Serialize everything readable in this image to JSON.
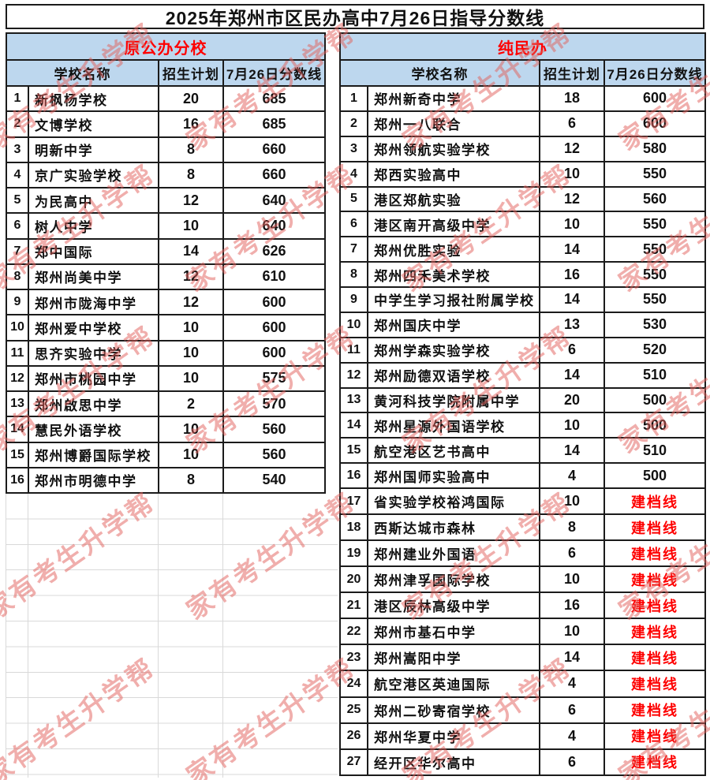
{
  "title": "2025年郑州市区民办高中7月26日指导分数线",
  "watermark_text": "家有考生升学帮",
  "column_headers": {
    "school": "学校名称",
    "plan": "招生计划",
    "score": "7月26日分数线"
  },
  "left_table": {
    "group_label": "原公办分校",
    "rows": [
      {
        "no": "1",
        "school": "新枫杨学校",
        "plan": "20",
        "score": "685",
        "red": false
      },
      {
        "no": "2",
        "school": "文博学校",
        "plan": "16",
        "score": "685",
        "red": false
      },
      {
        "no": "3",
        "school": "明新中学",
        "plan": "8",
        "score": "660",
        "red": false
      },
      {
        "no": "4",
        "school": "京广实验学校",
        "plan": "8",
        "score": "660",
        "red": false
      },
      {
        "no": "5",
        "school": "为民高中",
        "plan": "12",
        "score": "640",
        "red": false
      },
      {
        "no": "6",
        "school": "树人中学",
        "plan": "10",
        "score": "640",
        "red": false
      },
      {
        "no": "7",
        "school": "郑中国际",
        "plan": "14",
        "score": "626",
        "red": false
      },
      {
        "no": "8",
        "school": "郑州尚美中学",
        "plan": "12",
        "score": "610",
        "red": false
      },
      {
        "no": "9",
        "school": "郑州市陇海中学",
        "plan": "12",
        "score": "600",
        "red": false
      },
      {
        "no": "10",
        "school": "郑州爱中学校",
        "plan": "10",
        "score": "600",
        "red": false
      },
      {
        "no": "11",
        "school": "思齐实验中学",
        "plan": "10",
        "score": "600",
        "red": false
      },
      {
        "no": "12",
        "school": "郑州市桃园中学",
        "plan": "10",
        "score": "575",
        "red": false
      },
      {
        "no": "13",
        "school": "郑州啟思中学",
        "plan": "2",
        "score": "570",
        "red": false
      },
      {
        "no": "14",
        "school": "慧民外语学校",
        "plan": "10",
        "score": "560",
        "red": false
      },
      {
        "no": "15",
        "school": "郑州博爵国际学校",
        "plan": "10",
        "score": "560",
        "red": false
      },
      {
        "no": "16",
        "school": "郑州市明德中学",
        "plan": "8",
        "score": "540",
        "red": false
      }
    ]
  },
  "right_table": {
    "group_label": "纯民办",
    "rows": [
      {
        "no": "1",
        "school": "郑州新奇中学",
        "plan": "18",
        "score": "600",
        "red": false
      },
      {
        "no": "2",
        "school": "郑州一八联合",
        "plan": "6",
        "score": "600",
        "red": false
      },
      {
        "no": "3",
        "school": "郑州领航实验学校",
        "plan": "12",
        "score": "580",
        "red": false
      },
      {
        "no": "4",
        "school": "郑西实验高中",
        "plan": "10",
        "score": "550",
        "red": false
      },
      {
        "no": "5",
        "school": "港区郑航实验",
        "plan": "12",
        "score": "560",
        "red": false
      },
      {
        "no": "6",
        "school": "港区南开高级中学",
        "plan": "10",
        "score": "550",
        "red": false
      },
      {
        "no": "7",
        "school": "郑州优胜实验",
        "plan": "14",
        "score": "550",
        "red": false
      },
      {
        "no": "8",
        "school": "郑州四禾美术学校",
        "plan": "16",
        "score": "550",
        "red": false
      },
      {
        "no": "9",
        "school": "中学生学习报社附属学校",
        "plan": "14",
        "score": "550",
        "red": false
      },
      {
        "no": "10",
        "school": "郑州国庆中学",
        "plan": "13",
        "score": "530",
        "red": false
      },
      {
        "no": "11",
        "school": "郑州学森实验学校",
        "plan": "6",
        "score": "520",
        "red": false
      },
      {
        "no": "12",
        "school": "郑州励德双语学校",
        "plan": "14",
        "score": "510",
        "red": false
      },
      {
        "no": "13",
        "school": "黄河科技学院附属中学",
        "plan": "20",
        "score": "500",
        "red": false
      },
      {
        "no": "14",
        "school": "郑州星源外国语学校",
        "plan": "10",
        "score": "500",
        "red": false
      },
      {
        "no": "15",
        "school": "航空港区艺书高中",
        "plan": "14",
        "score": "510",
        "red": false
      },
      {
        "no": "16",
        "school": "郑州国师实验高中",
        "plan": "4",
        "score": "500",
        "red": false
      },
      {
        "no": "17",
        "school": "省实验学校裕鸿国际",
        "plan": "10",
        "score": "建档线",
        "red": true
      },
      {
        "no": "18",
        "school": "西斯达城市森林",
        "plan": "8",
        "score": "建档线",
        "red": true
      },
      {
        "no": "19",
        "school": "郑州建业外国语",
        "plan": "6",
        "score": "建档线",
        "red": true
      },
      {
        "no": "20",
        "school": "郑州津孚国际学校",
        "plan": "10",
        "score": "建档线",
        "red": true
      },
      {
        "no": "21",
        "school": "港区辰林高级中学",
        "plan": "16",
        "score": "建档线",
        "red": true
      },
      {
        "no": "22",
        "school": "郑州市基石中学",
        "plan": "10",
        "score": "建档线",
        "red": true
      },
      {
        "no": "23",
        "school": "郑州嵩阳中学",
        "plan": "14",
        "score": "建档线",
        "red": true
      },
      {
        "no": "24",
        "school": "航空港区英迪国际",
        "plan": "4",
        "score": "建档线",
        "red": true
      },
      {
        "no": "25",
        "school": "郑州二砂寄宿学校",
        "plan": "6",
        "score": "建档线",
        "red": true
      },
      {
        "no": "26",
        "school": "郑州华夏中学",
        "plan": "4",
        "score": "建档线",
        "red": true
      },
      {
        "no": "27",
        "school": "经开区华尔高中",
        "plan": "6",
        "score": "建档线",
        "red": true
      }
    ]
  },
  "colors": {
    "header_bg": "#bdd7ee",
    "accent_red": "#fe0000",
    "watermark": "#e2605b",
    "border_dark": "#1b1b1b",
    "grid_light": "#d9d9d9"
  }
}
